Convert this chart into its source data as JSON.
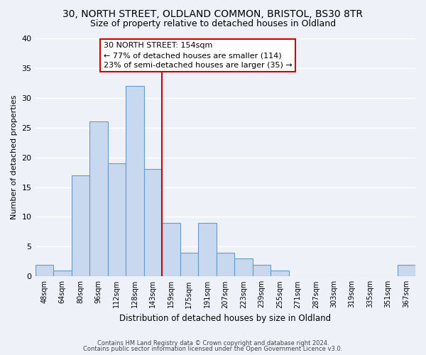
{
  "title": "30, NORTH STREET, OLDLAND COMMON, BRISTOL, BS30 8TR",
  "subtitle": "Size of property relative to detached houses in Oldland",
  "xlabel": "Distribution of detached houses by size in Oldland",
  "ylabel": "Number of detached properties",
  "bar_labels": [
    "48sqm",
    "64sqm",
    "80sqm",
    "96sqm",
    "112sqm",
    "128sqm",
    "143sqm",
    "159sqm",
    "175sqm",
    "191sqm",
    "207sqm",
    "223sqm",
    "239sqm",
    "255sqm",
    "271sqm",
    "287sqm",
    "303sqm",
    "319sqm",
    "335sqm",
    "351sqm",
    "367sqm"
  ],
  "bar_values": [
    2,
    1,
    17,
    26,
    19,
    32,
    18,
    9,
    4,
    9,
    4,
    3,
    2,
    1,
    0,
    0,
    0,
    0,
    0,
    0,
    2
  ],
  "bar_color": "#c8d8ee",
  "bar_edge_color": "#6699cc",
  "annotation_text": "30 NORTH STREET: 154sqm\n← 77% of detached houses are smaller (114)\n23% of semi-detached houses are larger (35) →",
  "vline_color": "#cc0000",
  "vline_x": 6.5,
  "ylim": [
    0,
    40
  ],
  "yticks": [
    0,
    5,
    10,
    15,
    20,
    25,
    30,
    35,
    40
  ],
  "annotation_box_color": "#ffffff",
  "annotation_box_edgecolor": "#cc0000",
  "footer_line1": "Contains HM Land Registry data © Crown copyright and database right 2024.",
  "footer_line2": "Contains public sector information licensed under the Open Government Licence v3.0.",
  "bg_color": "#eef2f8",
  "grid_color": "#ffffff",
  "title_fontsize": 10,
  "subtitle_fontsize": 9,
  "annotation_fontsize": 8,
  "ylabel_fontsize": 8,
  "xlabel_fontsize": 8.5
}
